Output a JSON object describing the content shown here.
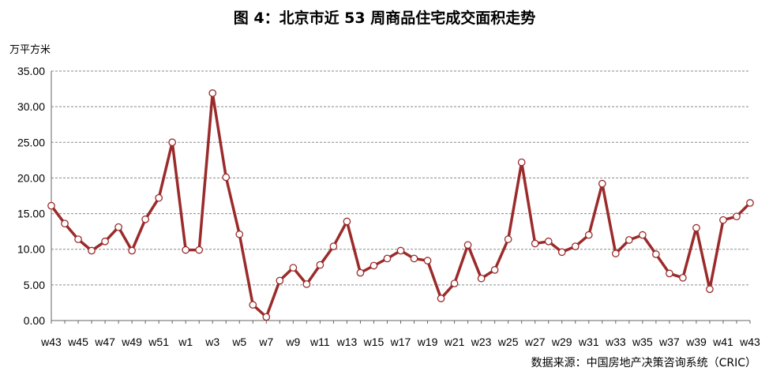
{
  "chart_data": {
    "type": "line",
    "title": "图 4：北京市近 53 周商品住宅成交面积走势",
    "ylabel": "万平方米",
    "source": "数据来源：中国房地产决策咨询系统（CRIC）",
    "ylim": [
      0,
      35
    ],
    "yticks": [
      "0.00",
      "5.00",
      "10.00",
      "15.00",
      "20.00",
      "25.00",
      "30.00",
      "35.00"
    ],
    "grid": true,
    "line_color": "#9b2b2b",
    "x": [
      "w43",
      "w44",
      "w45",
      "w46",
      "w47",
      "w48",
      "w49",
      "w50",
      "w51",
      "w52",
      "w1",
      "w2",
      "w3",
      "w4",
      "w5",
      "w6",
      "w7",
      "w8",
      "w9",
      "w10",
      "w11",
      "w12",
      "w13",
      "w14",
      "w15",
      "w16",
      "w17",
      "w18",
      "w19",
      "w20",
      "w21",
      "w22",
      "w23",
      "w24",
      "w25",
      "w26",
      "w27",
      "w28",
      "w29",
      "w30",
      "w31",
      "w32",
      "w33",
      "w34",
      "w35",
      "w36",
      "w37",
      "w38",
      "w39",
      "w40",
      "w41",
      "w42",
      "w43"
    ],
    "xtick_labels": [
      "w43",
      "w45",
      "w47",
      "w49",
      "w51",
      "w1",
      "w3",
      "w5",
      "w7",
      "w9",
      "w11",
      "w13",
      "w15",
      "w17",
      "w19",
      "w21",
      "w23",
      "w25",
      "w27",
      "w29",
      "w31",
      "w33",
      "w35",
      "w37",
      "w39",
      "w41",
      "w43"
    ],
    "values": [
      16.1,
      13.6,
      11.4,
      9.8,
      11.1,
      13.1,
      9.8,
      14.2,
      17.2,
      25.0,
      9.9,
      9.9,
      31.9,
      20.1,
      12.1,
      2.2,
      0.5,
      5.6,
      7.4,
      5.1,
      7.8,
      10.4,
      13.9,
      6.7,
      7.7,
      8.7,
      9.8,
      8.7,
      8.4,
      3.1,
      5.2,
      10.6,
      5.9,
      7.1,
      11.4,
      22.2,
      10.8,
      11.1,
      9.6,
      10.4,
      12.0,
      19.2,
      9.4,
      11.3,
      12.0,
      9.3,
      6.6,
      6.0,
      13.0,
      4.4,
      14.1,
      14.6,
      16.5
    ]
  }
}
